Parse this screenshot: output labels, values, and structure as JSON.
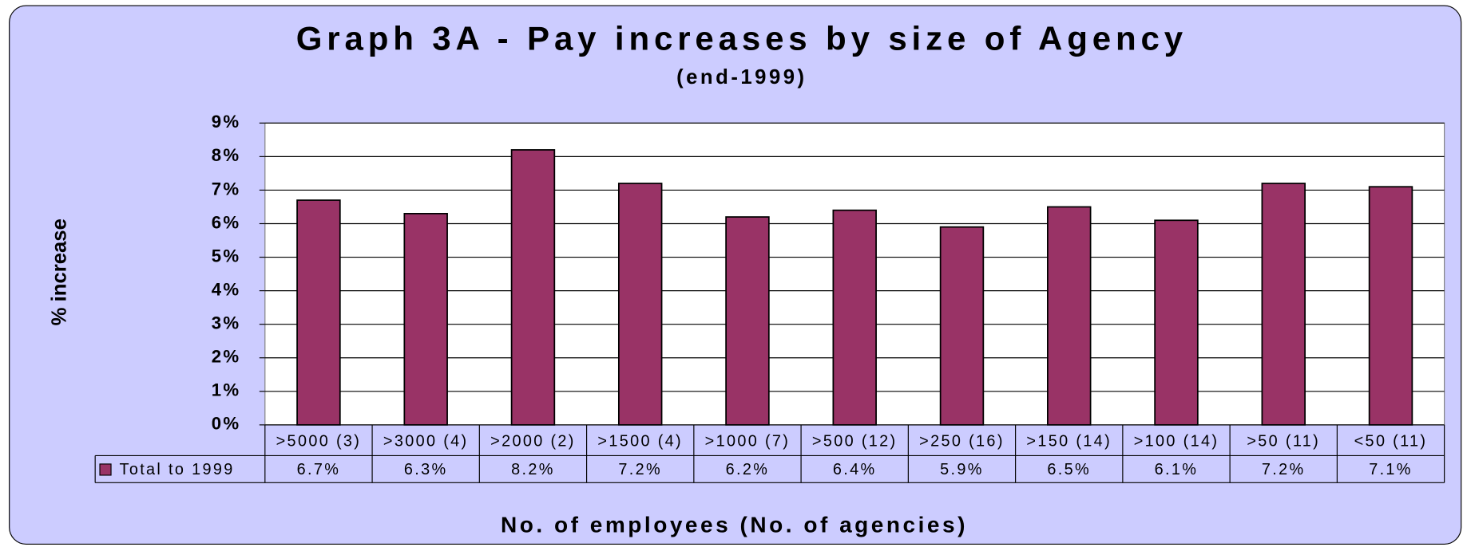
{
  "chart_data": {
    "type": "bar",
    "title": "Graph 3A - Pay increases by size of Agency",
    "subtitle": "(end-1999)",
    "y_label": "% increase",
    "x_label": "No. of employees (No. of  agencies)",
    "categories": [
      ">5000 (3)",
      ">3000 (4)",
      ">2000 (2)",
      ">1500 (4)",
      ">1000 (7)",
      ">500 (12)",
      ">250 (16)",
      ">150 (14)",
      ">100 (14)",
      ">50 (11)",
      "<50 (11)"
    ],
    "series": [
      {
        "name": "Total to 1999",
        "color": "#993366",
        "values": [
          6.7,
          6.3,
          8.2,
          7.2,
          6.2,
          6.4,
          5.9,
          6.5,
          6.1,
          7.2,
          7.1
        ],
        "value_labels": [
          "6.7%",
          "6.3%",
          "8.2%",
          "7.2%",
          "6.2%",
          "6.4%",
          "5.9%",
          "6.5%",
          "6.1%",
          "7.2%",
          "7.1%"
        ]
      }
    ],
    "ylim": [
      0,
      9
    ],
    "yticks": [
      {
        "value": 0,
        "label": "0%"
      },
      {
        "value": 1,
        "label": "1%"
      },
      {
        "value": 2,
        "label": "2%"
      },
      {
        "value": 3,
        "label": "3%"
      },
      {
        "value": 4,
        "label": "4%"
      },
      {
        "value": 5,
        "label": "5%"
      },
      {
        "value": 6,
        "label": "6%"
      },
      {
        "value": 7,
        "label": "7%"
      },
      {
        "value": 8,
        "label": "8%"
      },
      {
        "value": 9,
        "label": "9%"
      }
    ],
    "grid": true
  }
}
